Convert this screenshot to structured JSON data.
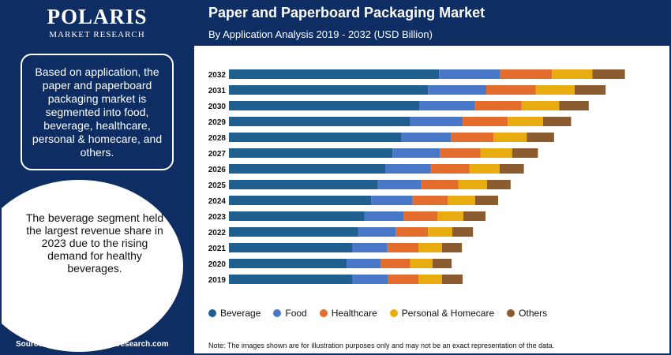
{
  "brand": {
    "name": "POLARIS",
    "tagline": "MARKET RESEARCH"
  },
  "left": {
    "info_text": "Based on application, the paper and paperboard packaging market is segmented into food, beverage, healthcare, personal & homecare, and others.",
    "highlight_text": "The beverage segment held the largest revenue share in 2023 due to the rising demand for healthy beverages.",
    "source": "Source:www.polarismarketresearch.com"
  },
  "footer_note": "Note: The images shown are for illustration purposes only and may not be an exact representation of the data.",
  "chart_data": {
    "type": "bar",
    "orientation": "horizontal",
    "stacked": true,
    "title": "Paper and Paperboard Packaging Market",
    "subtitle": "By Application Analysis 2019 - 2032 (USD Billion)",
    "xlabel": "",
    "ylabel": "",
    "categories": [
      "2032",
      "2031",
      "2030",
      "2029",
      "2028",
      "2027",
      "2026",
      "2025",
      "2024",
      "2023",
      "2022",
      "2021",
      "2020",
      "2019"
    ],
    "series": [
      {
        "name": "Beverage",
        "color": "#1f5f8f",
        "values": [
          285,
          270,
          258,
          246,
          234,
          222,
          212,
          202,
          193,
          184,
          175,
          167,
          160,
          167
        ]
      },
      {
        "name": "Food",
        "color": "#4a78c8",
        "values": [
          83,
          79,
          75,
          71,
          67,
          64,
          61,
          59,
          56,
          53,
          51,
          48,
          46,
          49
        ]
      },
      {
        "name": "Healthcare",
        "color": "#e36d2c",
        "values": [
          70,
          67,
          64,
          61,
          58,
          55,
          53,
          50,
          48,
          46,
          44,
          42,
          40,
          41
        ]
      },
      {
        "name": "Personal & Homecare",
        "color": "#e8ac10",
        "values": [
          55,
          53,
          51,
          48,
          45,
          43,
          41,
          39,
          37,
          35,
          33,
          32,
          30,
          32
        ]
      },
      {
        "name": "Others",
        "color": "#8a5c30",
        "values": [
          44,
          42,
          40,
          38,
          37,
          35,
          33,
          32,
          31,
          30,
          28,
          27,
          26,
          28
        ]
      }
    ],
    "legend_position": "bottom",
    "grid": false
  }
}
